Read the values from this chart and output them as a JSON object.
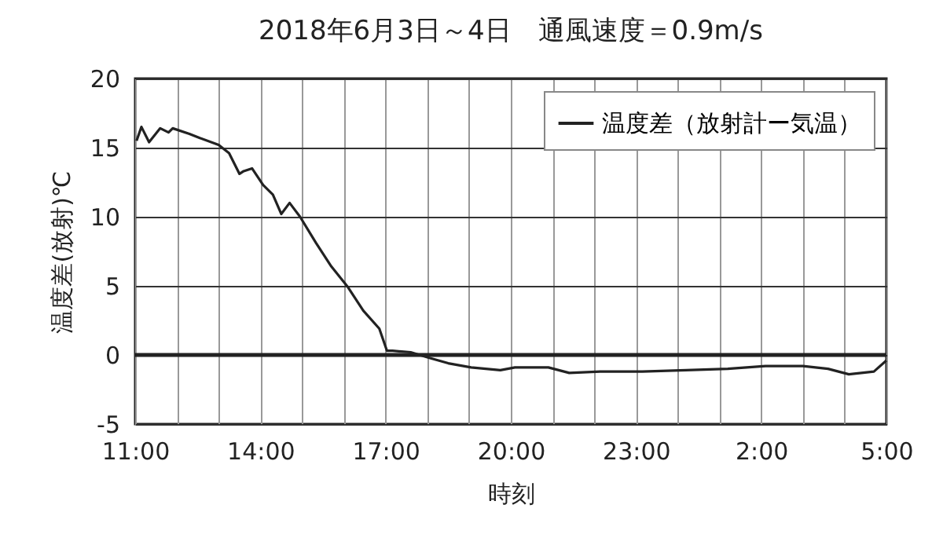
{
  "chart_data": {
    "type": "line",
    "title": "2018年6月3日～4日　通風速度＝0.9m/s",
    "xlabel": "時刻",
    "ylabel": "温度差(放射)℃",
    "x": [
      "2018-06-03T11:02",
      "2018-06-03T11:09",
      "2018-06-03T11:20",
      "2018-06-03T11:36",
      "2018-06-03T11:48",
      "2018-06-03T11:54",
      "2018-06-03T12:18",
      "2018-06-03T12:33",
      "2018-06-03T13:00",
      "2018-06-03T13:15",
      "2018-06-03T13:30",
      "2018-06-03T13:36",
      "2018-06-03T13:48",
      "2018-06-03T14:04",
      "2018-06-03T14:18",
      "2018-06-03T14:30",
      "2018-06-03T14:42",
      "2018-06-03T14:57",
      "2018-06-03T15:20",
      "2018-06-03T15:42",
      "2018-06-03T16:06",
      "2018-06-03T16:28",
      "2018-06-03T16:51",
      "2018-06-03T17:02",
      "2018-06-03T17:10",
      "2018-06-03T17:36",
      "2018-06-03T18:02",
      "2018-06-03T18:30",
      "2018-06-03T19:03",
      "2018-06-03T19:45",
      "2018-06-03T20:06",
      "2018-06-03T20:54",
      "2018-06-03T21:24",
      "2018-06-03T22:09",
      "2018-06-03T23:09",
      "2018-06-04T00:12",
      "2018-06-04T01:12",
      "2018-06-04T02:06",
      "2018-06-04T03:00",
      "2018-06-04T03:36",
      "2018-06-04T04:06",
      "2018-06-04T04:42",
      "2018-06-04T05:00"
    ],
    "series": [
      {
        "name": "温度差（放射計ー気温）",
        "color": "#222222",
        "values": [
          15.5,
          16.5,
          15.4,
          16.4,
          16.1,
          16.4,
          16.0,
          15.7,
          15.2,
          14.6,
          13.1,
          13.3,
          13.5,
          12.3,
          11.6,
          10.2,
          11.0,
          10.0,
          8.1,
          6.4,
          4.9,
          3.2,
          1.9,
          0.3,
          0.3,
          0.2,
          -0.2,
          -0.6,
          -0.9,
          -1.1,
          -0.9,
          -0.9,
          -1.3,
          -1.2,
          -1.2,
          -1.1,
          -1.0,
          -0.8,
          -0.8,
          -1.0,
          -1.4,
          -1.2,
          -0.4
        ]
      }
    ],
    "xlim": [
      "2018-06-03T11:00",
      "2018-06-04T05:00"
    ],
    "xticks": [
      {
        "value": "2018-06-03T11:00",
        "label": "11:00"
      },
      {
        "value": "2018-06-03T12:00",
        "label": null
      },
      {
        "value": "2018-06-03T13:00",
        "label": null
      },
      {
        "value": "2018-06-03T14:00",
        "label": "14:00"
      },
      {
        "value": "2018-06-03T15:00",
        "label": null
      },
      {
        "value": "2018-06-03T16:00",
        "label": null
      },
      {
        "value": "2018-06-03T17:00",
        "label": "17:00"
      },
      {
        "value": "2018-06-03T18:00",
        "label": null
      },
      {
        "value": "2018-06-03T19:00",
        "label": null
      },
      {
        "value": "2018-06-03T20:00",
        "label": "20:00"
      },
      {
        "value": "2018-06-03T21:00",
        "label": null
      },
      {
        "value": "2018-06-03T22:00",
        "label": null
      },
      {
        "value": "2018-06-03T23:00",
        "label": "23:00"
      },
      {
        "value": "2018-06-04T00:00",
        "label": null
      },
      {
        "value": "2018-06-04T01:00",
        "label": null
      },
      {
        "value": "2018-06-04T02:00",
        "label": "2:00"
      },
      {
        "value": "2018-06-04T03:00",
        "label": null
      },
      {
        "value": "2018-06-04T04:00",
        "label": null
      },
      {
        "value": "2018-06-04T05:00",
        "label": "5:00"
      }
    ],
    "ylim": [
      -5,
      20
    ],
    "yticks": [
      -5,
      0,
      5,
      10,
      15,
      20
    ],
    "ref_lines": [
      {
        "axis": "y",
        "value": 0,
        "color": "#222222"
      }
    ],
    "grid": true,
    "legend": "top right",
    "line_style": "solid"
  }
}
